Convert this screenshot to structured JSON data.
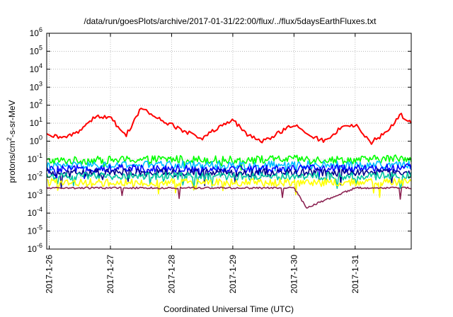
{
  "chart_data": {
    "type": "line",
    "title": "/data/run/goesPlots/archive/2017-01-31/22:00/flux/../flux/5daysEarthFluxes.txt",
    "xlabel": "Coordinated Universal Time (UTC)",
    "ylabel": {
      "pre": "protons/cm",
      "sup": "2",
      "post": "-s-sr-MeV"
    },
    "x_range": [
      "2017-01-25T23:00",
      "2017-01-31T22:00"
    ],
    "y_scale": "log",
    "ylim": [
      1e-06,
      1000000.0
    ],
    "grid": true,
    "legend": "none",
    "x_ticks": [
      {
        "label": "2017-1-26",
        "t": "2017-01-26T00:00"
      },
      {
        "label": "2017-1-27",
        "t": "2017-01-27T00:00"
      },
      {
        "label": "2017-1-28",
        "t": "2017-01-28T00:00"
      },
      {
        "label": "2017-1-29",
        "t": "2017-01-29T00:00"
      },
      {
        "label": "2017-1-30",
        "t": "2017-01-30T00:00"
      },
      {
        "label": "2017-1-31",
        "t": "2017-01-31T00:00"
      }
    ],
    "y_ticks": [
      {
        "base": "10",
        "exp": "-6",
        "value": 1e-06
      },
      {
        "base": "10",
        "exp": "-5",
        "value": 1e-05
      },
      {
        "base": "10",
        "exp": "-4",
        "value": 0.0001
      },
      {
        "base": "10",
        "exp": "-3",
        "value": 0.001
      },
      {
        "base": "10",
        "exp": "-2",
        "value": 0.01
      },
      {
        "base": "10",
        "exp": "-1",
        "value": 0.1
      },
      {
        "base": "10",
        "exp": "0",
        "value": 1
      },
      {
        "base": "10",
        "exp": "1",
        "value": 10
      },
      {
        "base": "10",
        "exp": "2",
        "value": 100
      },
      {
        "base": "10",
        "exp": "3",
        "value": 1000
      },
      {
        "base": "10",
        "exp": "4",
        "value": 10000
      },
      {
        "base": "10",
        "exp": "5",
        "value": 100000
      },
      {
        "base": "10",
        "exp": "6",
        "value": 1000000
      }
    ],
    "series": [
      {
        "color": "#00ff00",
        "values_approx": {
          "t": [
            "2017-01-26T00:00",
            "2017-01-27T00:00",
            "2017-01-28T00:00",
            "2017-01-29T00:00",
            "2017-01-30T00:00",
            "2017-01-31T00:00",
            "2017-01-31T22:00"
          ],
          "y": [
            0.08,
            0.09,
            0.1,
            0.09,
            0.1,
            0.09,
            0.12
          ]
        }
      },
      {
        "color": "#00bfff",
        "values_approx": {
          "t": [
            "2017-01-26T00:00",
            "2017-01-27T00:00",
            "2017-01-28T00:00",
            "2017-01-29T00:00",
            "2017-01-30T00:00",
            "2017-01-31T00:00",
            "2017-01-31T22:00"
          ],
          "y": [
            0.04,
            0.045,
            0.05,
            0.045,
            0.05,
            0.045,
            0.05
          ]
        }
      },
      {
        "color": "#0000ff",
        "values_approx": {
          "t": [
            "2017-01-26T00:00",
            "2017-01-27T00:00",
            "2017-01-28T00:00",
            "2017-01-29T00:00",
            "2017-01-30T00:00",
            "2017-01-31T00:00",
            "2017-01-31T22:00"
          ],
          "y": [
            0.025,
            0.03,
            0.03,
            0.028,
            0.03,
            0.03,
            0.035
          ]
        }
      },
      {
        "color": "#00008b",
        "values_approx": {
          "t": [
            "2017-01-26T00:00",
            "2017-01-27T00:00",
            "2017-01-28T00:00",
            "2017-01-29T00:00",
            "2017-01-30T00:00",
            "2017-01-31T00:00",
            "2017-01-31T22:00"
          ],
          "y": [
            0.016,
            0.018,
            0.018,
            0.017,
            0.018,
            0.018,
            0.018
          ]
        }
      },
      {
        "color": "#00c8a0",
        "values_approx": {
          "t": [
            "2017-01-26T00:00",
            "2017-01-27T00:00",
            "2017-01-28T00:00",
            "2017-01-29T00:00",
            "2017-01-30T00:00",
            "2017-01-31T00:00",
            "2017-01-31T22:00"
          ],
          "y": [
            0.011,
            0.011,
            0.012,
            0.011,
            0.012,
            0.011,
            0.012
          ]
        }
      },
      {
        "color": "#ffff00",
        "values_approx": {
          "t": [
            "2017-01-26T00:00",
            "2017-01-27T00:00",
            "2017-01-28T00:00",
            "2017-01-29T00:00",
            "2017-01-30T00:00",
            "2017-01-31T00:00",
            "2017-01-31T22:00"
          ],
          "y": [
            0.005,
            0.005,
            0.005,
            0.005,
            0.005,
            0.005,
            0.005
          ]
        }
      },
      {
        "color": "#8b2252",
        "values_approx": {
          "t": [
            "2017-01-26T00:00",
            "2017-01-27T00:00",
            "2017-01-28T00:00",
            "2017-01-29T00:00",
            "2017-01-30T00:00",
            "2017-01-30T05:00",
            "2017-01-31T00:00",
            "2017-01-31T22:00"
          ],
          "y": [
            0.0025,
            0.0025,
            0.0025,
            0.0025,
            0.0025,
            0.0002,
            0.0025,
            0.0025
          ]
        }
      },
      {
        "color": "#ff0000",
        "values_approx": {
          "t": [
            "2017-01-25T23:00",
            "2017-01-26T06:00",
            "2017-01-26T12:00",
            "2017-01-26T18:00",
            "2017-01-27T00:00",
            "2017-01-27T06:00",
            "2017-01-27T12:00",
            "2017-01-27T18:00",
            "2017-01-28T00:00",
            "2017-01-28T06:00",
            "2017-01-28T12:00",
            "2017-01-28T18:00",
            "2017-01-29T00:00",
            "2017-01-29T06:00",
            "2017-01-29T12:00",
            "2017-01-29T18:00",
            "2017-01-30T00:00",
            "2017-01-30T06:00",
            "2017-01-30T12:00",
            "2017-01-30T18:00",
            "2017-01-31T00:00",
            "2017-01-31T06:00",
            "2017-01-31T12:00",
            "2017-01-31T18:00",
            "2017-01-31T22:00"
          ],
          "y": [
            2,
            1.5,
            4,
            25,
            20,
            2,
            70,
            20,
            8,
            3,
            1.5,
            5,
            15,
            2,
            1,
            3,
            8,
            2,
            1,
            5,
            8,
            0.8,
            3,
            30,
            10
          ]
        }
      }
    ]
  }
}
